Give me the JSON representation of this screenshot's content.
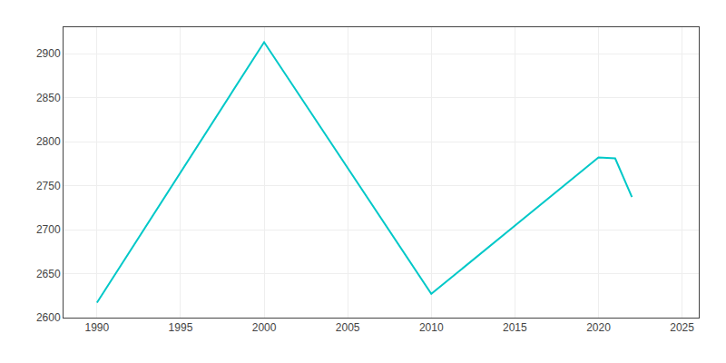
{
  "chart_data": {
    "type": "line",
    "x": [
      1990,
      2000,
      2010,
      2020,
      2021,
      2022
    ],
    "values": [
      2617,
      2913,
      2627,
      2782,
      2781,
      2737
    ],
    "color": "#00C8C8",
    "xlim": [
      1988,
      2026
    ],
    "ylim": [
      2600,
      2930
    ],
    "xticks": [
      1990,
      1995,
      2000,
      2005,
      2010,
      2015,
      2020,
      2025
    ],
    "yticks": [
      2600,
      2650,
      2700,
      2750,
      2800,
      2850,
      2900
    ],
    "grid": true
  }
}
